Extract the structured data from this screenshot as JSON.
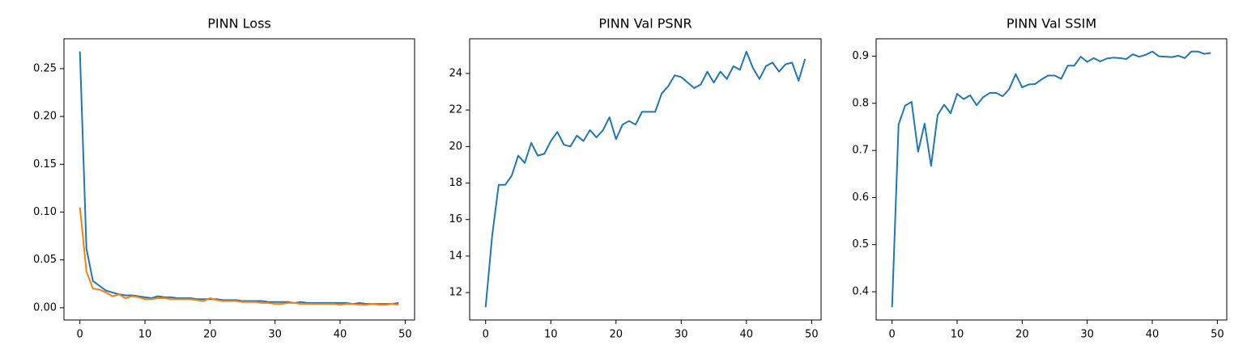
{
  "chart_data": [
    {
      "type": "line",
      "title": "PINN Loss",
      "x": [
        0,
        1,
        2,
        3,
        4,
        5,
        6,
        7,
        8,
        9,
        10,
        11,
        12,
        13,
        14,
        15,
        16,
        17,
        18,
        19,
        20,
        21,
        22,
        23,
        24,
        25,
        26,
        27,
        28,
        29,
        30,
        31,
        32,
        33,
        34,
        35,
        36,
        37,
        38,
        39,
        40,
        41,
        42,
        43,
        44,
        45,
        46,
        47,
        48,
        49
      ],
      "series": [
        {
          "color": "#1f77b4",
          "values": [
            0.268,
            0.062,
            0.028,
            0.023,
            0.018,
            0.016,
            0.014,
            0.013,
            0.013,
            0.012,
            0.011,
            0.01,
            0.012,
            0.011,
            0.011,
            0.01,
            0.01,
            0.01,
            0.009,
            0.009,
            0.009,
            0.009,
            0.008,
            0.008,
            0.008,
            0.007,
            0.007,
            0.007,
            0.007,
            0.006,
            0.006,
            0.006,
            0.006,
            0.005,
            0.006,
            0.005,
            0.005,
            0.005,
            0.005,
            0.005,
            0.005,
            0.005,
            0.004,
            0.005,
            0.004,
            0.004,
            0.004,
            0.004,
            0.004,
            0.005
          ]
        },
        {
          "color": "#ff7f0e",
          "values": [
            0.105,
            0.038,
            0.02,
            0.019,
            0.016,
            0.012,
            0.014,
            0.01,
            0.012,
            0.011,
            0.009,
            0.009,
            0.01,
            0.01,
            0.009,
            0.009,
            0.009,
            0.009,
            0.008,
            0.007,
            0.01,
            0.008,
            0.007,
            0.007,
            0.007,
            0.006,
            0.006,
            0.006,
            0.005,
            0.005,
            0.004,
            0.004,
            0.005,
            0.005,
            0.004,
            0.004,
            0.004,
            0.004,
            0.004,
            0.004,
            0.003,
            0.004,
            0.004,
            0.003,
            0.003,
            0.004,
            0.003,
            0.003,
            0.004,
            0.003
          ]
        }
      ],
      "xlim": [
        -2.45,
        51.45
      ],
      "xticks": [
        0,
        10,
        20,
        30,
        40,
        50
      ],
      "ylim": [
        -0.0128,
        0.2812
      ],
      "yticks": [
        {
          "value": 0,
          "label": "0.00"
        },
        {
          "value": 0.05,
          "label": "0.05"
        },
        {
          "value": 0.1,
          "label": "0.10"
        },
        {
          "value": 0.15,
          "label": "0.15"
        },
        {
          "value": 0.2,
          "label": "0.20"
        },
        {
          "value": 0.25,
          "label": "0.25"
        }
      ]
    },
    {
      "type": "line",
      "title": "PINN Val PSNR",
      "x": [
        0,
        1,
        2,
        3,
        4,
        5,
        6,
        7,
        8,
        9,
        10,
        11,
        12,
        13,
        14,
        15,
        16,
        17,
        18,
        19,
        20,
        21,
        22,
        23,
        24,
        25,
        26,
        27,
        28,
        29,
        30,
        31,
        32,
        33,
        34,
        35,
        36,
        37,
        38,
        39,
        40,
        41,
        42,
        43,
        44,
        45,
        46,
        47,
        48,
        49
      ],
      "series": [
        {
          "color": "#1f77b4",
          "values": [
            11.2,
            15.1,
            17.9,
            17.9,
            18.4,
            19.5,
            19.1,
            20.2,
            19.5,
            19.6,
            20.3,
            20.8,
            20.1,
            20.0,
            20.6,
            20.3,
            20.9,
            20.5,
            20.9,
            21.6,
            20.4,
            21.2,
            21.4,
            21.2,
            21.9,
            21.9,
            21.9,
            22.9,
            23.3,
            23.9,
            23.8,
            23.5,
            23.2,
            23.4,
            24.1,
            23.5,
            24.1,
            23.7,
            24.4,
            24.2,
            25.2,
            24.3,
            23.7,
            24.4,
            24.6,
            24.1,
            24.5,
            24.6,
            23.6,
            24.8
          ]
        }
      ],
      "xlim": [
        -2.45,
        51.45
      ],
      "xticks": [
        0,
        10,
        20,
        30,
        40,
        50
      ],
      "ylim": [
        10.5,
        25.9
      ],
      "yticks": [
        12,
        14,
        16,
        18,
        20,
        22,
        24
      ]
    },
    {
      "type": "line",
      "title": "PINN Val SSIM",
      "x": [
        0,
        1,
        2,
        3,
        4,
        5,
        6,
        7,
        8,
        9,
        10,
        11,
        12,
        13,
        14,
        15,
        16,
        17,
        18,
        19,
        20,
        21,
        22,
        23,
        24,
        25,
        26,
        27,
        28,
        29,
        30,
        31,
        32,
        33,
        34,
        35,
        36,
        37,
        38,
        39,
        40,
        41,
        42,
        43,
        44,
        45,
        46,
        47,
        48,
        49
      ],
      "series": [
        {
          "color": "#1f77b4",
          "values": [
            0.367,
            0.755,
            0.795,
            0.803,
            0.697,
            0.757,
            0.667,
            0.775,
            0.797,
            0.779,
            0.82,
            0.809,
            0.817,
            0.796,
            0.813,
            0.822,
            0.822,
            0.815,
            0.83,
            0.862,
            0.834,
            0.84,
            0.841,
            0.851,
            0.859,
            0.859,
            0.852,
            0.88,
            0.88,
            0.899,
            0.888,
            0.896,
            0.889,
            0.895,
            0.897,
            0.896,
            0.894,
            0.904,
            0.899,
            0.903,
            0.91,
            0.9,
            0.899,
            0.898,
            0.901,
            0.896,
            0.91,
            0.91,
            0.905,
            0.907
          ]
        }
      ],
      "xlim": [
        -2.45,
        51.45
      ],
      "xticks": [
        0,
        10,
        20,
        30,
        40,
        50
      ],
      "ylim": [
        0.34,
        0.937
      ],
      "yticks": [
        0.4,
        0.5,
        0.6,
        0.7,
        0.8,
        0.9
      ]
    }
  ]
}
